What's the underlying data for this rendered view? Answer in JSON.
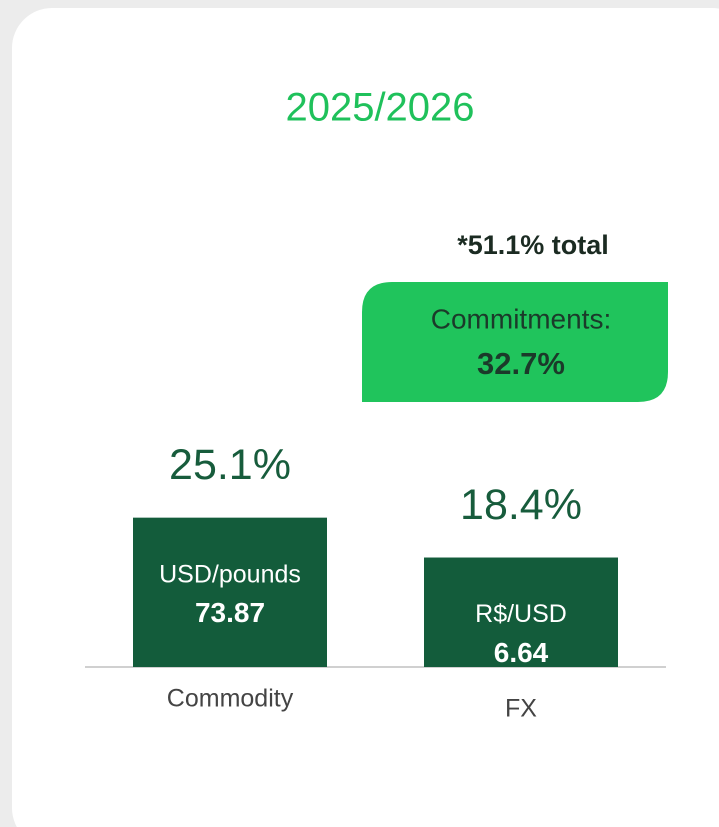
{
  "chart_data": {
    "type": "bar",
    "title": "2025/2026",
    "categories": [
      "Commodity",
      "FX"
    ],
    "values": [
      25.1,
      18.4
    ],
    "value_labels": [
      "25.1%",
      "18.4%"
    ],
    "bar_names": [
      "USD/pounds",
      "R$/USD"
    ],
    "bar_numbers": [
      73.87,
      6.64
    ],
    "color": "#135c3b",
    "total_note": "*51.1% total",
    "commitments": {
      "label": "Commitments:",
      "value": "32.7%",
      "color": "#20c45c"
    }
  }
}
